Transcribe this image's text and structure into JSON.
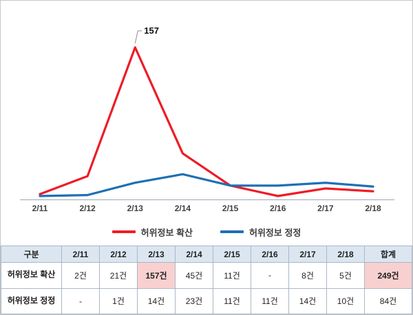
{
  "chart_data": {
    "type": "line",
    "title": "",
    "categories": [
      "2/11",
      "2/12",
      "2/13",
      "2/14",
      "2/15",
      "2/16",
      "2/17",
      "2/18"
    ],
    "series": [
      {
        "name": "허위정보 확산",
        "color": "#ee1c25",
        "values": [
          2,
          21,
          157,
          45,
          11,
          0,
          8,
          5
        ]
      },
      {
        "name": "허위정보 정정",
        "color": "#1f6fb5",
        "values": [
          0,
          1,
          14,
          23,
          11,
          11,
          14,
          10
        ]
      }
    ],
    "annotation": {
      "label": "157",
      "category": "2/13",
      "series": 0
    },
    "xlabel": "",
    "ylabel": "",
    "ylim": [
      0,
      170
    ],
    "grid": false,
    "legend_position": "bottom"
  },
  "table": {
    "headers": [
      "구분",
      "2/11",
      "2/12",
      "2/13",
      "2/14",
      "2/15",
      "2/16",
      "2/17",
      "2/18",
      "합계"
    ],
    "rows": [
      {
        "label": "허위정보 확산",
        "cells": [
          "2건",
          "21건",
          "157건",
          "45건",
          "11건",
          "-",
          "8건",
          "5건",
          "249건"
        ],
        "highlight": [
          2,
          8
        ]
      },
      {
        "label": "허위정보 정정",
        "cells": [
          "-",
          "1건",
          "14건",
          "23건",
          "11건",
          "11건",
          "14건",
          "10건",
          "84건"
        ],
        "highlight": []
      }
    ]
  },
  "colors": {
    "spread_line": "#ee1c25",
    "correction_line": "#1f6fb5",
    "table_header_bg": "#dce6f1",
    "highlight_bg": "#f9d0d0",
    "axis_line": "#9aa5b1",
    "border": "#a9b7c6"
  }
}
